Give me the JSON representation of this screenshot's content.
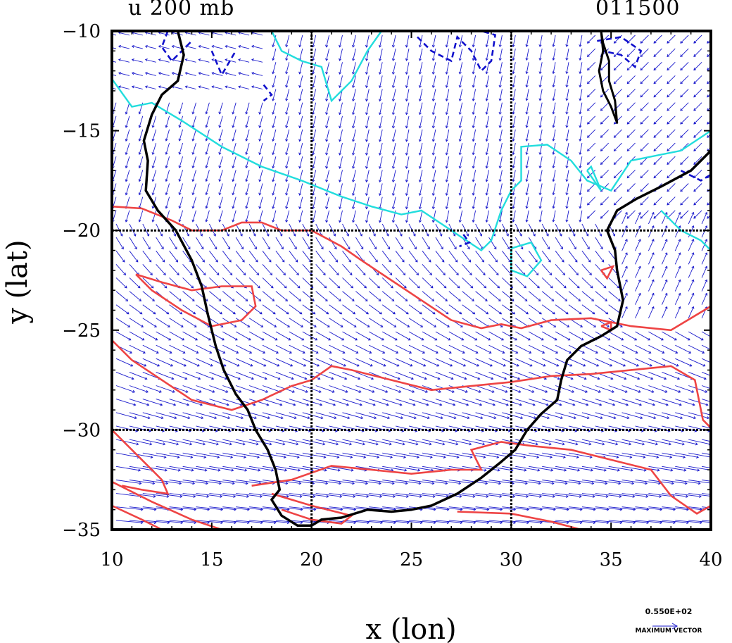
{
  "header": {
    "left_title": "u 200 mb",
    "right_title": "011500"
  },
  "chart_data": {
    "type": "vector-contour",
    "xlabel": "x (lon)",
    "ylabel": "y (lat)",
    "xlim": [
      10,
      40
    ],
    "ylim": [
      -35,
      -10
    ],
    "xticks": [
      10,
      15,
      20,
      25,
      30,
      35,
      40
    ],
    "yticks": [
      -10,
      -15,
      -20,
      -25,
      -30,
      -35
    ],
    "grid_x": [
      20,
      30
    ],
    "grid_y": [
      -20,
      -30
    ],
    "grid": "dotted",
    "legend_position": "bottom-right",
    "max_vector_label": "0.550E+02",
    "max_vector_text": "MAXIMUM VECTOR",
    "colors": {
      "coastline": "#000000",
      "positive_contour": "#ee4444",
      "zero_contour": "#22dddd",
      "negative_contour": "#1010cc",
      "vectors": "#1a1acc"
    },
    "coastline": [
      [
        13.3,
        -10
      ],
      [
        13.6,
        -11.2
      ],
      [
        13.3,
        -12.5
      ],
      [
        12.5,
        -13.2
      ],
      [
        12.0,
        -14.2
      ],
      [
        11.6,
        -15.5
      ],
      [
        11.8,
        -16.5
      ],
      [
        11.7,
        -18.0
      ],
      [
        12.3,
        -19.0
      ],
      [
        13.2,
        -20.0
      ],
      [
        14.0,
        -21.5
      ],
      [
        14.5,
        -22.8
      ],
      [
        14.8,
        -24.2
      ],
      [
        15.2,
        -25.8
      ],
      [
        15.6,
        -27.0
      ],
      [
        16.2,
        -28.2
      ],
      [
        16.8,
        -29.0
      ],
      [
        17.2,
        -30.0
      ],
      [
        17.8,
        -31.0
      ],
      [
        18.2,
        -32.0
      ],
      [
        18.4,
        -33.0
      ],
      [
        18.0,
        -33.5
      ],
      [
        18.5,
        -34.3
      ],
      [
        19.3,
        -34.8
      ],
      [
        20.0,
        -34.8
      ],
      [
        20.5,
        -34.5
      ],
      [
        21.5,
        -34.4
      ],
      [
        22.8,
        -34.0
      ],
      [
        24.0,
        -34.1
      ],
      [
        25.0,
        -34.0
      ],
      [
        26.0,
        -33.8
      ],
      [
        27.3,
        -33.2
      ],
      [
        28.5,
        -32.4
      ],
      [
        29.5,
        -31.6
      ],
      [
        30.2,
        -31.0
      ],
      [
        30.8,
        -30.0
      ],
      [
        31.5,
        -29.2
      ],
      [
        32.3,
        -28.5
      ],
      [
        32.5,
        -27.5
      ],
      [
        32.8,
        -26.5
      ],
      [
        33.5,
        -25.8
      ],
      [
        34.5,
        -25.3
      ],
      [
        35.3,
        -24.8
      ],
      [
        35.6,
        -23.5
      ],
      [
        35.3,
        -22.0
      ],
      [
        35.2,
        -21.0
      ],
      [
        34.8,
        -20.0
      ],
      [
        35.3,
        -19.0
      ],
      [
        36.3,
        -18.4
      ],
      [
        37.5,
        -17.8
      ],
      [
        39.0,
        -17.0
      ],
      [
        40.0,
        -16.0
      ]
    ],
    "lake_outline": [
      [
        34.5,
        -10
      ],
      [
        34.6,
        -11.0
      ],
      [
        34.4,
        -12.0
      ],
      [
        34.6,
        -13.0
      ],
      [
        35.0,
        -13.8
      ],
      [
        35.3,
        -14.6
      ],
      [
        35.2,
        -13.5
      ],
      [
        34.9,
        -12.5
      ],
      [
        34.9,
        -11.5
      ],
      [
        34.6,
        -10.6
      ],
      [
        34.5,
        -10
      ]
    ],
    "contours_positive": [
      [
        [
          10,
          -18.8
        ],
        [
          11.5,
          -18.9
        ],
        [
          13,
          -19.5
        ],
        [
          14,
          -20.0
        ],
        [
          15.5,
          -20.0
        ],
        [
          16.5,
          -19.6
        ],
        [
          17.5,
          -19.6
        ],
        [
          18.5,
          -20.0
        ],
        [
          20,
          -20.0
        ],
        [
          21.5,
          -20.8
        ],
        [
          22.5,
          -21.5
        ],
        [
          24.0,
          -22.5
        ],
        [
          25.5,
          -23.5
        ],
        [
          27.0,
          -24.5
        ],
        [
          28.5,
          -24.9
        ],
        [
          29.5,
          -24.7
        ],
        [
          30.5,
          -24.9
        ],
        [
          32,
          -24.5
        ],
        [
          34,
          -24.4
        ],
        [
          36,
          -24.8
        ],
        [
          38,
          -25.0
        ],
        [
          40,
          -23.8
        ]
      ],
      [
        [
          11.2,
          -22.2
        ],
        [
          12.5,
          -22.6
        ],
        [
          14,
          -23.0
        ],
        [
          15.5,
          -22.8
        ],
        [
          17,
          -22.8
        ],
        [
          17.2,
          -23.8
        ],
        [
          16.5,
          -24.5
        ],
        [
          15.0,
          -24.8
        ],
        [
          13.5,
          -24.0
        ],
        [
          12.0,
          -23.0
        ],
        [
          11.2,
          -22.2
        ]
      ],
      [
        [
          10,
          -25.5
        ],
        [
          11,
          -26.5
        ],
        [
          12.5,
          -27.5
        ],
        [
          14,
          -28.5
        ],
        [
          16,
          -29.0
        ],
        [
          17.5,
          -28.5
        ],
        [
          19,
          -27.8
        ],
        [
          20,
          -27.5
        ],
        [
          21,
          -26.8
        ],
        [
          22,
          -27.0
        ],
        [
          24,
          -27.5
        ],
        [
          26,
          -28.0
        ],
        [
          28,
          -27.8
        ],
        [
          30,
          -27.6
        ],
        [
          32,
          -27.3
        ],
        [
          34,
          -27.2
        ],
        [
          36,
          -27.0
        ],
        [
          38,
          -26.8
        ],
        [
          39.2,
          -27.5
        ],
        [
          39.6,
          -29.5
        ],
        [
          40,
          -29.9
        ]
      ],
      [
        [
          10,
          -30.0
        ],
        [
          11.5,
          -31.5
        ],
        [
          12.5,
          -32.5
        ],
        [
          12.8,
          -33.2
        ],
        [
          11.5,
          -33.0
        ],
        [
          10.5,
          -32.8
        ]
      ],
      [
        [
          10,
          -32.6
        ],
        [
          12,
          -33.6
        ],
        [
          14,
          -34.5
        ],
        [
          15.5,
          -35
        ]
      ],
      [
        [
          10,
          -33.8
        ],
        [
          11.5,
          -34.5
        ],
        [
          12.5,
          -35
        ]
      ],
      [
        [
          17.0,
          -32.8
        ],
        [
          19,
          -32.5
        ],
        [
          21,
          -31.8
        ],
        [
          23,
          -32.0
        ],
        [
          25,
          -32.2
        ],
        [
          27,
          -32.0
        ],
        [
          28.5,
          -32.0
        ],
        [
          28,
          -31.0
        ],
        [
          29.5,
          -30.6
        ],
        [
          31,
          -30.8
        ],
        [
          33,
          -31.0
        ],
        [
          35,
          -31.5
        ],
        [
          37,
          -32.0
        ],
        [
          38,
          -33.3
        ],
        [
          39.3,
          -34.2
        ],
        [
          40,
          -33.8
        ]
      ],
      [
        [
          18.0,
          -33.2
        ],
        [
          20,
          -33.8
        ],
        [
          22,
          -34.3
        ],
        [
          21.5,
          -34.7
        ],
        [
          20,
          -34.5
        ],
        [
          18.5,
          -34.0
        ]
      ],
      [
        [
          27.3,
          -34.1
        ],
        [
          30,
          -34.2
        ],
        [
          32,
          -34.6
        ],
        [
          33.5,
          -35
        ]
      ],
      [
        [
          34.5,
          -22.0
        ],
        [
          35.1,
          -21.8
        ],
        [
          34.8,
          -22.4
        ],
        [
          34.5,
          -22.0
        ]
      ],
      [
        [
          34.5,
          -24.8
        ],
        [
          35.0,
          -24.6
        ],
        [
          35.0,
          -25.0
        ],
        [
          34.5,
          -24.8
        ]
      ]
    ],
    "contours_zero": [
      [
        [
          10,
          -12.4
        ],
        [
          11,
          -13.8
        ],
        [
          12,
          -13.6
        ],
        [
          13.5,
          -14.5
        ],
        [
          15.5,
          -15.8
        ],
        [
          17.5,
          -16.8
        ],
        [
          19.5,
          -17.5
        ],
        [
          21.5,
          -18.3
        ],
        [
          23,
          -18.8
        ],
        [
          24.5,
          -19.2
        ],
        [
          25.5,
          -19.0
        ],
        [
          27,
          -20.0
        ],
        [
          28.5,
          -21.0
        ],
        [
          29,
          -20.5
        ],
        [
          29.5,
          -19.0
        ],
        [
          30.0,
          -18.0
        ],
        [
          30.5,
          -17.5
        ],
        [
          30.5,
          -15.8
        ],
        [
          31.8,
          -15.7
        ],
        [
          33.0,
          -16.5
        ],
        [
          33.8,
          -17.5
        ],
        [
          35.0,
          -18.0
        ],
        [
          36.0,
          -16.5
        ],
        [
          38.5,
          -16.0
        ],
        [
          40,
          -15.0
        ]
      ],
      [
        [
          30,
          -20.9
        ],
        [
          31,
          -20.6
        ],
        [
          31.5,
          -21.5
        ],
        [
          30.8,
          -22.3
        ],
        [
          30.0,
          -22.0
        ],
        [
          30,
          -20.9
        ]
      ],
      [
        [
          37.5,
          -19.0
        ],
        [
          38.5,
          -20.0
        ],
        [
          39.5,
          -20.5
        ],
        [
          40,
          -21.0
        ]
      ],
      [
        [
          18.0,
          -10
        ],
        [
          18.5,
          -11.0
        ],
        [
          19.5,
          -11.5
        ],
        [
          20.5,
          -11.8
        ],
        [
          21.0,
          -13.5
        ],
        [
          22.0,
          -12.5
        ],
        [
          22.8,
          -11.0
        ],
        [
          23.5,
          -10
        ]
      ],
      [
        [
          33.8,
          -17.0
        ],
        [
          34.5,
          -18.0
        ],
        [
          34.0,
          -16.8
        ],
        [
          33.8,
          -17.0
        ]
      ]
    ],
    "contours_negative": [
      [
        [
          12.8,
          -10
        ],
        [
          12.5,
          -10.8
        ],
        [
          13.0,
          -11.5
        ],
        [
          14,
          -10.5
        ]
      ],
      [
        [
          15.0,
          -11.0
        ],
        [
          15.5,
          -12.2
        ],
        [
          16.2,
          -11.0
        ]
      ],
      [
        [
          25.3,
          -10.3
        ],
        [
          26.0,
          -11.0
        ],
        [
          27.0,
          -11.5
        ],
        [
          27.3,
          -10.3
        ],
        [
          28.0,
          -11.0
        ],
        [
          28.5,
          -12.0
        ],
        [
          29.0,
          -11.5
        ],
        [
          29.2,
          -10.2
        ],
        [
          28.5,
          -10
        ]
      ],
      [
        [
          34.3,
          -10.5
        ],
        [
          35.5,
          -10.3
        ],
        [
          36.5,
          -11.0
        ],
        [
          36.2,
          -11.8
        ],
        [
          35.5,
          -11.2
        ],
        [
          34.6,
          -11.0
        ]
      ],
      [
        [
          17.6,
          -12.7
        ],
        [
          18.0,
          -13.2
        ],
        [
          17.6,
          -13.5
        ]
      ],
      [
        [
          27.6,
          -20.2
        ],
        [
          27.9,
          -20.6
        ],
        [
          27.4,
          -20.8
        ]
      ],
      [
        [
          38.5,
          -17.0
        ],
        [
          39.5,
          -17.5
        ],
        [
          40,
          -17.2
        ]
      ]
    ]
  }
}
